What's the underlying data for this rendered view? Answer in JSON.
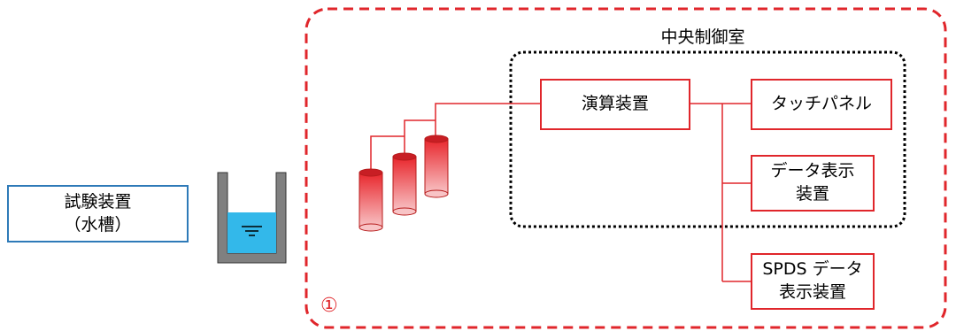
{
  "test_device": {
    "label": "試験装置\n（水槽）"
  },
  "control_room": {
    "title": "中央制御室"
  },
  "nodes": {
    "processor": "演算装置",
    "touch_panel": "タッチパネル",
    "data_display": "データ表示\n装置",
    "spds_display": "SPDS データ\n表示装置"
  },
  "region_marker": "①",
  "colors": {
    "system_red": "#e0262b",
    "test_blue": "#2e7ab8",
    "water": "#33b8ea",
    "tank_wall": "#808080"
  }
}
